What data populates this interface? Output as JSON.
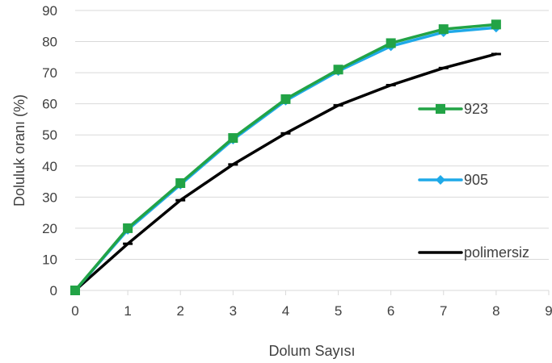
{
  "chart_data": {
    "type": "line",
    "title": "",
    "xlabel": "Dolum Sayısı",
    "ylabel": "Doluluk  oranı (%)",
    "xlim": [
      0,
      9
    ],
    "ylim": [
      0,
      90
    ],
    "x_ticks": [
      0,
      1,
      2,
      3,
      4,
      5,
      6,
      7,
      8,
      9
    ],
    "y_ticks": [
      0,
      10,
      20,
      30,
      40,
      50,
      60,
      70,
      80,
      90
    ],
    "grid": "horizontal",
    "legend_placement": "right",
    "x": [
      0,
      1,
      2,
      3,
      4,
      5,
      6,
      7,
      8
    ],
    "series": [
      {
        "name": "923",
        "color": "#22a346",
        "marker": "square",
        "values": [
          0,
          20,
          34.5,
          49,
          61.5,
          71,
          79.5,
          84,
          85.5
        ]
      },
      {
        "name": "905",
        "color": "#1fa9e8",
        "marker": "diamond",
        "values": [
          0,
          19.5,
          34,
          48.5,
          61,
          70.5,
          78.5,
          83,
          84.5
        ]
      },
      {
        "name": "polimersiz",
        "color": "#000000",
        "marker": "dash",
        "values": [
          0,
          15,
          29,
          40.5,
          50.5,
          59.5,
          66,
          71.5,
          76
        ]
      }
    ]
  }
}
